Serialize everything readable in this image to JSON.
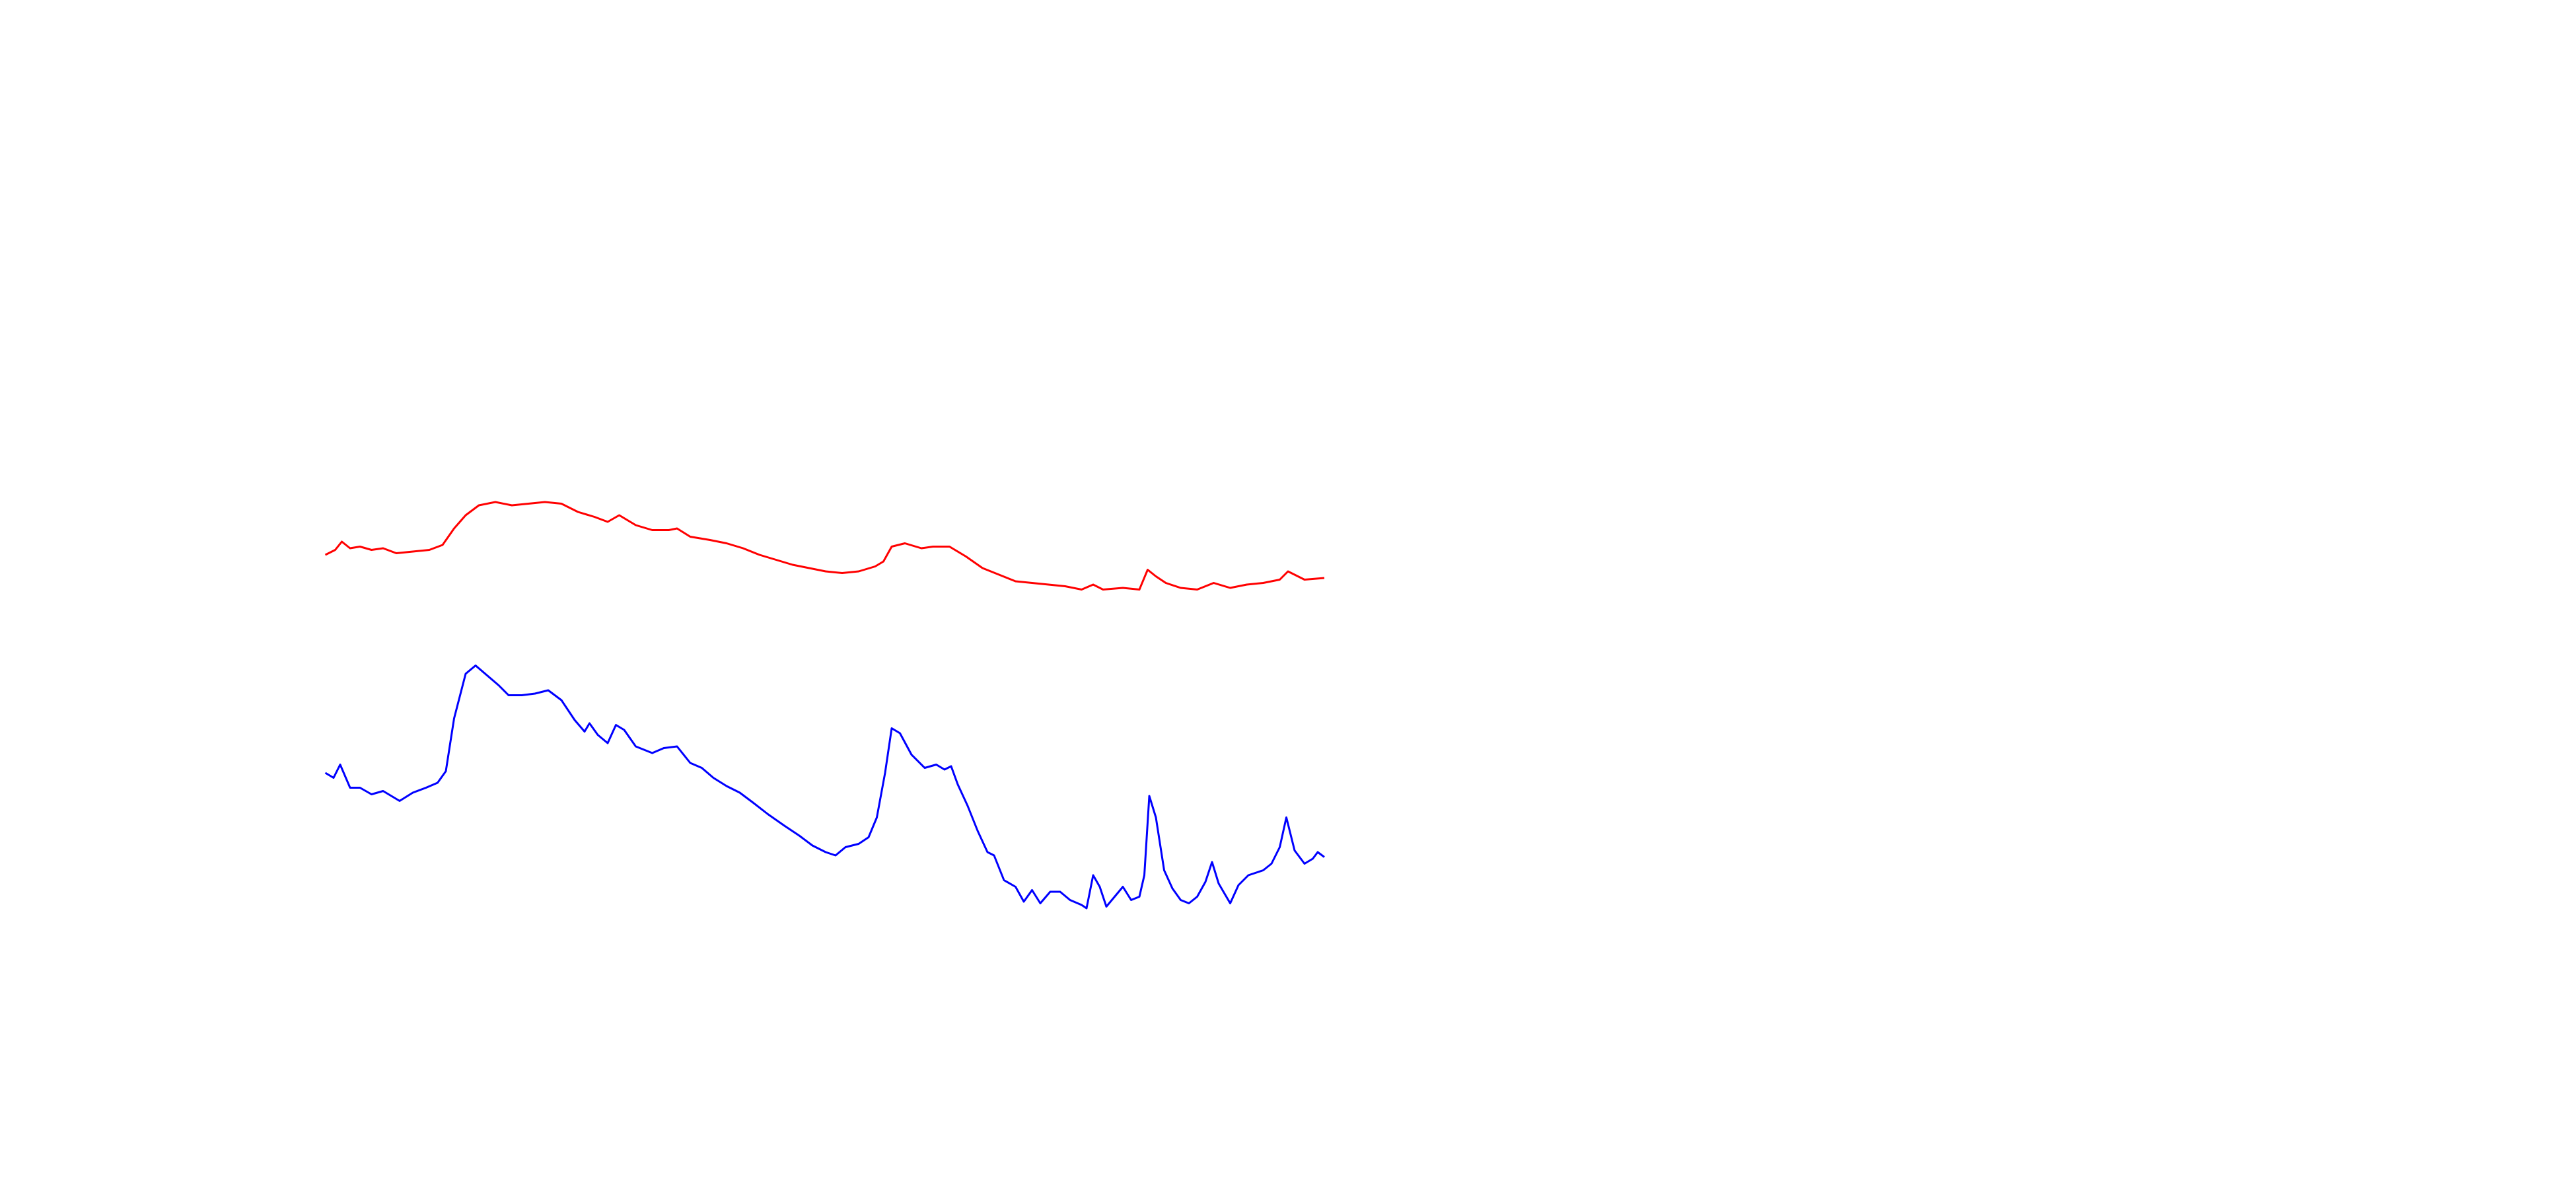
{
  "chart_data": {
    "type": "line",
    "xlim": [
      0,
      1560
    ],
    "ylim": [
      720,
      0
    ],
    "series": [
      {
        "color": "#ff0000",
        "x": [
          197,
          203,
          207,
          212,
          218,
          225,
          232,
          240,
          250,
          260,
          268,
          275,
          282,
          290,
          300,
          310,
          320,
          330,
          340,
          350,
          360,
          368,
          375,
          385,
          395,
          405,
          410,
          418,
          430,
          440,
          450,
          460,
          470,
          480,
          490,
          500,
          510,
          520,
          530,
          535,
          540,
          548,
          558,
          565,
          575,
          585,
          595,
          605,
          615,
          625,
          635,
          645,
          655,
          662,
          668,
          680,
          690,
          695,
          700,
          706,
          715,
          725,
          735,
          745,
          755,
          765,
          775,
          780,
          790,
          802
        ],
        "values": [
          336,
          333,
          328,
          332,
          331,
          333,
          332,
          335,
          334,
          333,
          330,
          320,
          312,
          306,
          304,
          306,
          305,
          304,
          305,
          310,
          313,
          316,
          312,
          318,
          321,
          321,
          320,
          325,
          327,
          329,
          332,
          336,
          339,
          342,
          344,
          346,
          347,
          346,
          343,
          340,
          331,
          329,
          332,
          331,
          331,
          337,
          344,
          348,
          352,
          353,
          354,
          355,
          357,
          354,
          357,
          356,
          357,
          345,
          349,
          353,
          356,
          357,
          353,
          356,
          354,
          353,
          351,
          346,
          351,
          350
        ]
      },
      {
        "color": "#0000ff",
        "x": [
          197,
          202,
          206,
          212,
          218,
          225,
          232,
          242,
          250,
          258,
          265,
          270,
          275,
          282,
          288,
          295,
          302,
          308,
          316,
          324,
          332,
          340,
          348,
          354,
          357,
          362,
          368,
          373,
          378,
          385,
          395,
          402,
          410,
          418,
          425,
          432,
          440,
          448,
          456,
          465,
          475,
          484,
          492,
          500,
          506,
          512,
          520,
          526,
          531,
          536,
          540,
          545,
          552,
          560,
          567,
          572,
          576,
          580,
          586,
          592,
          598,
          602,
          608,
          615,
          620,
          625,
          630,
          636,
          642,
          648,
          655,
          658,
          662,
          666,
          670,
          675,
          680,
          685,
          690,
          693,
          696,
          700,
          705,
          710,
          715,
          720,
          725,
          730,
          734,
          738,
          745,
          750,
          756,
          765,
          770,
          775,
          779,
          784,
          790,
          795,
          798,
          802
        ],
        "values": [
          468,
          471,
          463,
          477,
          477,
          481,
          479,
          485,
          480,
          477,
          474,
          467,
          435,
          408,
          403,
          409,
          415,
          421,
          421,
          420,
          418,
          424,
          436,
          443,
          438,
          445,
          450,
          439,
          442,
          452,
          456,
          453,
          452,
          462,
          465,
          471,
          476,
          480,
          486,
          493,
          500,
          506,
          512,
          516,
          518,
          513,
          511,
          507,
          495,
          468,
          441,
          444,
          457,
          465,
          463,
          466,
          464,
          475,
          488,
          503,
          516,
          518,
          533,
          537,
          546,
          539,
          547,
          540,
          540,
          545,
          548,
          550,
          530,
          537,
          549,
          543,
          537,
          545,
          543,
          530,
          482,
          495,
          527,
          538,
          545,
          547,
          543,
          534,
          522,
          535,
          547,
          536,
          530,
          527,
          523,
          513,
          495,
          515,
          523,
          520,
          516,
          519
        ]
      }
    ]
  }
}
